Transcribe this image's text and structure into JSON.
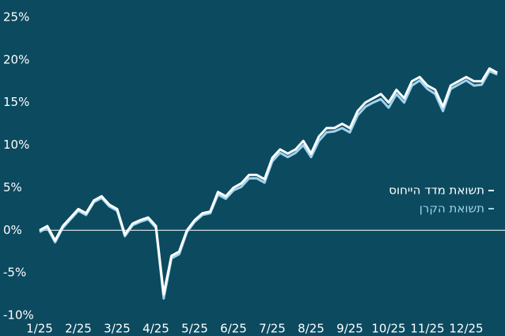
{
  "chart_data": {
    "type": "line",
    "x": [
      0,
      0.2,
      0.4,
      0.6,
      0.8,
      1.0,
      1.2,
      1.4,
      1.6,
      1.8,
      2.0,
      2.2,
      2.4,
      2.6,
      2.8,
      3.0,
      3.2,
      3.4,
      3.6,
      3.8,
      4.0,
      4.2,
      4.4,
      4.6,
      4.8,
      5.0,
      5.2,
      5.4,
      5.6,
      5.8,
      6.0,
      6.2,
      6.4,
      6.6,
      6.8,
      7.0,
      7.2,
      7.4,
      7.6,
      7.8,
      8.0,
      8.2,
      8.4,
      8.6,
      8.8,
      9.0,
      9.2,
      9.4,
      9.6,
      9.8,
      10.0,
      10.2,
      10.4,
      10.6,
      10.8,
      11.0,
      11.2,
      11.4,
      11.6,
      11.8
    ],
    "series": [
      {
        "name": "תשואת מדד הייחוס",
        "color": "#ffffff",
        "values": [
          0,
          0.5,
          -1.2,
          0.5,
          1.5,
          2.5,
          2.0,
          3.5,
          4.0,
          3.0,
          2.5,
          -0.5,
          0.8,
          1.2,
          1.5,
          0.5,
          -7.5,
          -3.0,
          -2.5,
          0,
          1.2,
          2.0,
          2.2,
          4.5,
          4.0,
          5.0,
          5.5,
          6.5,
          6.5,
          6.0,
          8.5,
          9.5,
          9.0,
          9.5,
          10.5,
          9.0,
          11.0,
          12.0,
          12.0,
          12.5,
          12.0,
          14.0,
          15.0,
          15.5,
          16.0,
          15.0,
          16.5,
          15.5,
          17.5,
          18.0,
          17.0,
          16.5,
          14.5,
          17.0,
          17.5,
          18.0,
          17.5,
          17.5,
          19.0,
          18.5
        ]
      },
      {
        "name": "תשואת הקרן",
        "color": "#9fd3ee",
        "values": [
          -0.2,
          0.3,
          -1.4,
          0.3,
          1.3,
          2.3,
          1.8,
          3.3,
          3.8,
          2.8,
          2.3,
          -0.7,
          0.6,
          1.0,
          1.3,
          0.3,
          -8.0,
          -3.3,
          -2.8,
          -0.2,
          1.0,
          1.8,
          2.0,
          4.2,
          3.7,
          4.7,
          5.1,
          6.1,
          6.1,
          5.6,
          8.1,
          9.1,
          8.6,
          9.1,
          10.0,
          8.6,
          10.5,
          11.5,
          11.6,
          12.0,
          11.5,
          13.5,
          14.5,
          15.0,
          15.4,
          14.4,
          16.0,
          15.0,
          17.0,
          17.6,
          16.6,
          16.0,
          14.0,
          16.6,
          17.1,
          17.6,
          17.0,
          17.1,
          18.7,
          18.3
        ]
      }
    ],
    "xlim": [
      0,
      12
    ],
    "xticks": [
      {
        "value": 0,
        "label": "1/25"
      },
      {
        "value": 1,
        "label": "2/25"
      },
      {
        "value": 2,
        "label": "3/25"
      },
      {
        "value": 3,
        "label": "4/25"
      },
      {
        "value": 4,
        "label": "5/25"
      },
      {
        "value": 5,
        "label": "6/25"
      },
      {
        "value": 6,
        "label": "7/25"
      },
      {
        "value": 7,
        "label": "8/25"
      },
      {
        "value": 8,
        "label": "9/25"
      },
      {
        "value": 9,
        "label": "10/25"
      },
      {
        "value": 10,
        "label": "11/25"
      },
      {
        "value": 11,
        "label": "12/25"
      }
    ],
    "ylim": [
      -10,
      25
    ],
    "yticks": [
      {
        "value": -10,
        "label": "-10%"
      },
      {
        "value": -5,
        "label": "-5%"
      },
      {
        "value": 0,
        "label": "0%"
      },
      {
        "value": 5,
        "label": "5%"
      },
      {
        "value": 10,
        "label": "10%"
      },
      {
        "value": 15,
        "label": "15%"
      },
      {
        "value": 20,
        "label": "20%"
      },
      {
        "value": 25,
        "label": "25%"
      }
    ]
  }
}
